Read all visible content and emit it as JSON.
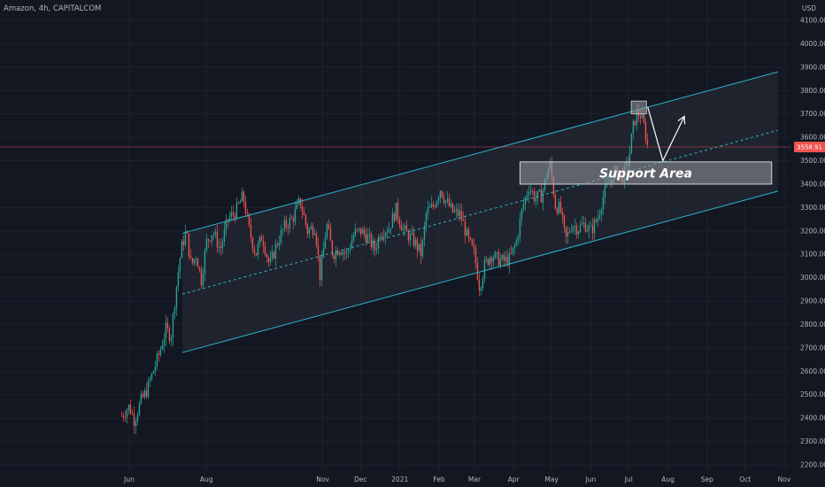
{
  "header": {
    "symbol_title": "Amazon, 4h, CAPITALCOM"
  },
  "colors": {
    "background": "#131722",
    "up": "#26a69a",
    "down": "#ef5350",
    "channel": "#29b6c9",
    "grid": "#1e222d",
    "price_line": "#ef5350"
  },
  "chart_data": {
    "type": "candlestick",
    "currency": "USD",
    "y_ticks": [
      2200,
      2300,
      2400,
      2500,
      2600,
      2700,
      2800,
      2900,
      3000,
      3100,
      3200,
      3300,
      3400,
      3500,
      3600,
      3700,
      3800,
      3900,
      4000,
      4100
    ],
    "y_tick_labels": [
      "2200.00",
      "2300.00",
      "2400.00",
      "2500.00",
      "2600.00",
      "2700.00",
      "2800.00",
      "2900.00",
      "3000.00",
      "3100.00",
      "3200.00",
      "3300.00",
      "3400.00",
      "3500.00",
      "3600.00",
      "3700.00",
      "3800.00",
      "3900.00",
      "4000.00",
      "4100.00"
    ],
    "ylim": [
      2180,
      4130
    ],
    "x_ticks": [
      {
        "label": "Jun",
        "date": "2020-06-01"
      },
      {
        "label": "Aug",
        "date": "2020-08-01"
      },
      {
        "label": "Nov",
        "date": "2020-11-01"
      },
      {
        "label": "Dec",
        "date": "2020-12-01"
      },
      {
        "label": "2021",
        "date": "2021-01-01"
      },
      {
        "label": "Feb",
        "date": "2021-02-01"
      },
      {
        "label": "Mar",
        "date": "2021-03-01"
      },
      {
        "label": "Apr",
        "date": "2021-04-01"
      },
      {
        "label": "May",
        "date": "2021-05-01"
      },
      {
        "label": "Jun",
        "date": "2021-06-01"
      },
      {
        "label": "Jul",
        "date": "2021-07-01"
      },
      {
        "label": "Aug",
        "date": "2021-08-01"
      },
      {
        "label": "Sep",
        "date": "2021-09-01"
      },
      {
        "label": "Oct",
        "date": "2021-10-01"
      },
      {
        "label": "Nov",
        "date": "2021-11-01"
      }
    ],
    "price_path": [
      [
        "2020-05-26",
        2410
      ],
      [
        "2020-06-01",
        2450
      ],
      [
        "2020-06-05",
        2390
      ],
      [
        "2020-06-10",
        2470
      ],
      [
        "2020-06-15",
        2520
      ],
      [
        "2020-06-20",
        2600
      ],
      [
        "2020-06-25",
        2680
      ],
      [
        "2020-06-30",
        2780
      ],
      [
        "2020-07-04",
        2750
      ],
      [
        "2020-07-08",
        2950
      ],
      [
        "2020-07-12",
        3120
      ],
      [
        "2020-07-16",
        3200
      ],
      [
        "2020-07-20",
        3050
      ],
      [
        "2020-07-24",
        3100
      ],
      [
        "2020-07-28",
        2990
      ],
      [
        "2020-08-01",
        3150
      ],
      [
        "2020-08-06",
        3200
      ],
      [
        "2020-08-12",
        3120
      ],
      [
        "2020-08-18",
        3250
      ],
      [
        "2020-08-24",
        3280
      ],
      [
        "2020-08-30",
        3350
      ],
      [
        "2020-09-04",
        3200
      ],
      [
        "2020-09-09",
        3100
      ],
      [
        "2020-09-14",
        3180
      ],
      [
        "2020-09-20",
        3050
      ],
      [
        "2020-09-26",
        3150
      ],
      [
        "2020-10-02",
        3220
      ],
      [
        "2020-10-08",
        3250
      ],
      [
        "2020-10-14",
        3330
      ],
      [
        "2020-10-20",
        3200
      ],
      [
        "2020-10-26",
        3220
      ],
      [
        "2020-10-30",
        3000
      ],
      [
        "2020-11-04",
        3230
      ],
      [
        "2020-11-09",
        3100
      ],
      [
        "2020-11-14",
        3130
      ],
      [
        "2020-11-20",
        3100
      ],
      [
        "2020-11-26",
        3190
      ],
      [
        "2020-12-01",
        3200
      ],
      [
        "2020-12-07",
        3170
      ],
      [
        "2020-12-12",
        3120
      ],
      [
        "2020-12-17",
        3200
      ],
      [
        "2020-12-23",
        3210
      ],
      [
        "2020-12-29",
        3290
      ],
      [
        "2021-01-04",
        3200
      ],
      [
        "2021-01-08",
        3180
      ],
      [
        "2021-01-13",
        3150
      ],
      [
        "2021-01-18",
        3100
      ],
      [
        "2021-01-22",
        3280
      ],
      [
        "2021-01-27",
        3300
      ],
      [
        "2021-02-02",
        3380
      ],
      [
        "2021-02-06",
        3330
      ],
      [
        "2021-02-12",
        3280
      ],
      [
        "2021-02-18",
        3270
      ],
      [
        "2021-02-24",
        3160
      ],
      [
        "2021-03-01",
        3100
      ],
      [
        "2021-03-05",
        2960
      ],
      [
        "2021-03-09",
        3050
      ],
      [
        "2021-03-14",
        3100
      ],
      [
        "2021-03-19",
        3080
      ],
      [
        "2021-03-24",
        3070
      ],
      [
        "2021-03-29",
        3080
      ],
      [
        "2021-04-03",
        3150
      ],
      [
        "2021-04-08",
        3300
      ],
      [
        "2021-04-13",
        3390
      ],
      [
        "2021-04-18",
        3340
      ],
      [
        "2021-04-23",
        3350
      ],
      [
        "2021-04-28",
        3460
      ],
      [
        "2021-04-30",
        3480
      ],
      [
        "2021-05-04",
        3310
      ],
      [
        "2021-05-08",
        3290
      ],
      [
        "2021-05-12",
        3160
      ],
      [
        "2021-05-17",
        3230
      ],
      [
        "2021-05-22",
        3210
      ],
      [
        "2021-05-27",
        3230
      ],
      [
        "2021-06-01",
        3200
      ],
      [
        "2021-06-06",
        3250
      ],
      [
        "2021-06-11",
        3350
      ],
      [
        "2021-06-16",
        3420
      ],
      [
        "2021-06-21",
        3450
      ],
      [
        "2021-06-26",
        3430
      ],
      [
        "2021-07-01",
        3500
      ],
      [
        "2021-07-04",
        3630
      ],
      [
        "2021-07-07",
        3700
      ],
      [
        "2021-07-10",
        3700
      ],
      [
        "2021-07-13",
        3650
      ],
      [
        "2021-07-16",
        3560
      ]
    ],
    "current_price": 3558.91,
    "current_price_label": "3558.91",
    "channel": {
      "upper": [
        [
          "2020-07-13",
          3190
        ],
        [
          "2021-10-27",
          3880
        ]
      ],
      "middle": [
        [
          "2020-07-13",
          2930
        ],
        [
          "2021-10-27",
          3630
        ]
      ],
      "lower": [
        [
          "2020-07-13",
          2680
        ],
        [
          "2021-10-27",
          3370
        ]
      ]
    },
    "support_area": {
      "label": "Support Area",
      "x_start": "2021-04-06",
      "x_end": "2021-10-22",
      "y_top": 3495,
      "y_bottom": 3400
    },
    "highlight_box": {
      "x_start": "2021-07-03",
      "x_end": "2021-07-15",
      "y_top": 3755,
      "y_bottom": 3700
    },
    "projection_path": [
      [
        "2021-07-16",
        3730
      ],
      [
        "2021-07-28",
        3500
      ],
      [
        "2021-08-14",
        3690
      ]
    ]
  }
}
